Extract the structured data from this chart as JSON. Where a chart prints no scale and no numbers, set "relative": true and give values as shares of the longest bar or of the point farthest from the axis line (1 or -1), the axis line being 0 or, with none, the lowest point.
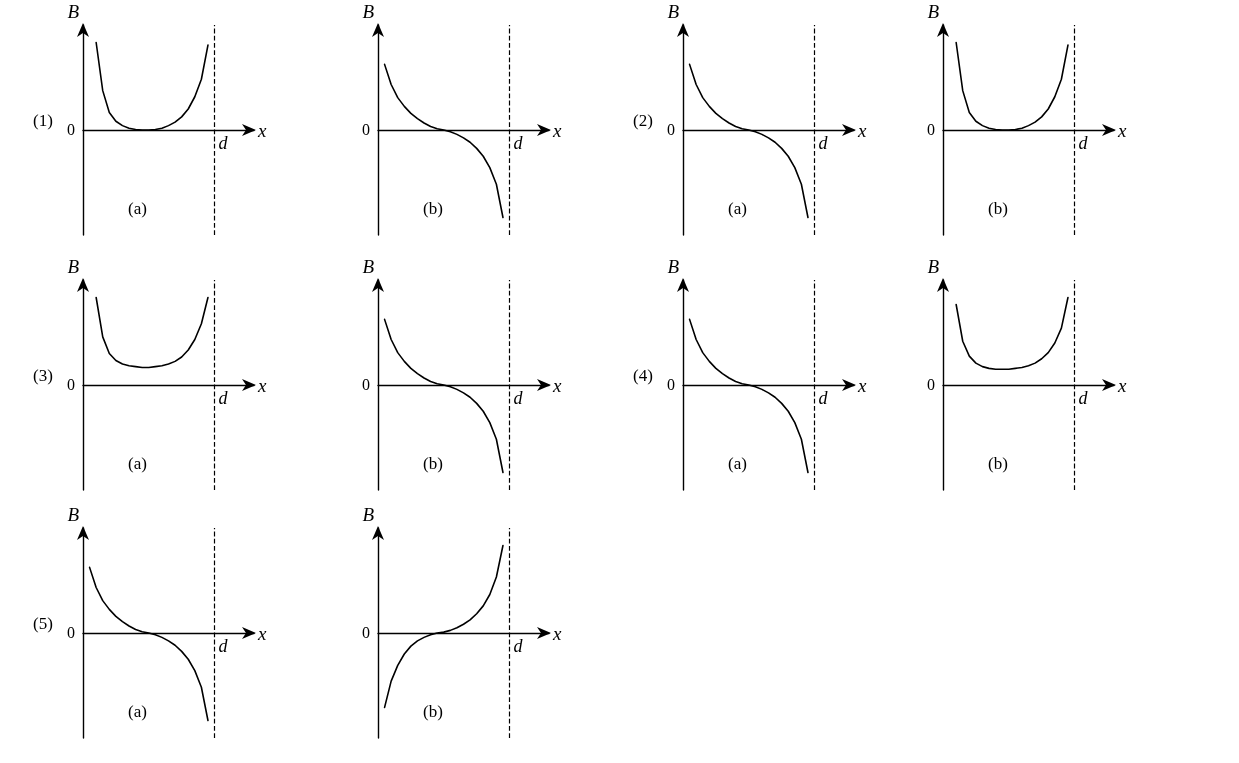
{
  "chart_data": [
    {
      "type": "line",
      "title": "(1)",
      "subtitle": "(a)",
      "xlabel": "x",
      "ylabel": "B",
      "annotations": [
        "0",
        "d"
      ],
      "relative": true,
      "color": "#000000",
      "categories": [
        null,
        null,
        null,
        null,
        null,
        null,
        null,
        null,
        null,
        null,
        null,
        null,
        null,
        null,
        null,
        null,
        null,
        null,
        null,
        null,
        null,
        null,
        null,
        null,
        null,
        null,
        null
      ],
      "values": [
        null,
        null,
        1,
        0.45,
        0.2,
        0.1,
        0.05,
        0.02,
        0.005,
        0,
        0,
        0.005,
        0.02,
        0.05,
        0.09,
        0.15,
        0.24,
        0.38,
        0.58,
        0.97,
        null,
        null,
        null,
        null,
        null,
        null,
        null
      ]
    },
    {
      "type": "line",
      "subtitle": "(b)",
      "xlabel": "x",
      "ylabel": "B",
      "annotations": [
        "0",
        "d"
      ],
      "relative": true,
      "color": "#000000",
      "categories": [
        null,
        null,
        null,
        null,
        null,
        null,
        null,
        null,
        null,
        null,
        null,
        null,
        null,
        null,
        null,
        null,
        null,
        null,
        null,
        null,
        null,
        null,
        null,
        null,
        null,
        null,
        null
      ],
      "values": [
        null,
        0.75,
        0.52,
        0.37,
        0.27,
        0.19,
        0.13,
        0.08,
        0.04,
        0.015,
        0,
        -0.02,
        -0.05,
        -0.09,
        -0.14,
        -0.21,
        -0.3,
        -0.43,
        -0.62,
        -1,
        null,
        null,
        null,
        null,
        null,
        null,
        null
      ]
    },
    {
      "type": "line",
      "title": "(2)",
      "subtitle": "(a)",
      "xlabel": "x",
      "ylabel": "B",
      "annotations": [
        "0",
        "d"
      ],
      "relative": true,
      "color": "#000000",
      "categories": [
        null,
        null,
        null,
        null,
        null,
        null,
        null,
        null,
        null,
        null,
        null,
        null,
        null,
        null,
        null,
        null,
        null,
        null,
        null,
        null,
        null,
        null,
        null,
        null,
        null,
        null,
        null
      ],
      "values": [
        null,
        0.75,
        0.52,
        0.37,
        0.27,
        0.19,
        0.13,
        0.08,
        0.04,
        0.015,
        0,
        -0.02,
        -0.05,
        -0.09,
        -0.14,
        -0.21,
        -0.3,
        -0.43,
        -0.62,
        -1,
        null,
        null,
        null,
        null,
        null,
        null,
        null
      ]
    },
    {
      "type": "line",
      "subtitle": "(b)",
      "xlabel": "x",
      "ylabel": "B",
      "annotations": [
        "0",
        "d"
      ],
      "relative": true,
      "color": "#000000",
      "categories": [
        null,
        null,
        null,
        null,
        null,
        null,
        null,
        null,
        null,
        null,
        null,
        null,
        null,
        null,
        null,
        null,
        null,
        null,
        null,
        null,
        null,
        null,
        null,
        null,
        null,
        null,
        null
      ],
      "values": [
        null,
        null,
        1,
        0.45,
        0.2,
        0.1,
        0.05,
        0.02,
        0.005,
        0,
        0,
        0.005,
        0.02,
        0.05,
        0.09,
        0.15,
        0.24,
        0.38,
        0.58,
        0.97,
        null,
        null,
        null,
        null,
        null,
        null,
        null
      ]
    },
    {
      "type": "line",
      "title": "(3)",
      "subtitle": "(a)",
      "xlabel": "x",
      "ylabel": "B",
      "annotations": [
        "0",
        "d"
      ],
      "relative": true,
      "color": "#000000",
      "categories": [
        null,
        null,
        null,
        null,
        null,
        null,
        null,
        null,
        null,
        null,
        null,
        null,
        null,
        null,
        null,
        null,
        null,
        null,
        null,
        null,
        null,
        null,
        null,
        null,
        null,
        null,
        null
      ],
      "values": [
        null,
        null,
        1,
        0.55,
        0.36,
        0.28,
        0.24,
        0.22,
        0.21,
        0.2,
        0.2,
        0.21,
        0.22,
        0.24,
        0.27,
        0.32,
        0.4,
        0.52,
        0.7,
        1,
        null,
        null,
        null,
        null,
        null,
        null,
        null
      ]
    },
    {
      "type": "line",
      "subtitle": "(b)",
      "xlabel": "x",
      "ylabel": "B",
      "annotations": [
        "0",
        "d"
      ],
      "relative": true,
      "color": "#000000",
      "categories": [
        null,
        null,
        null,
        null,
        null,
        null,
        null,
        null,
        null,
        null,
        null,
        null,
        null,
        null,
        null,
        null,
        null,
        null,
        null,
        null,
        null,
        null,
        null,
        null,
        null,
        null,
        null
      ],
      "values": [
        null,
        0.75,
        0.52,
        0.37,
        0.27,
        0.19,
        0.13,
        0.08,
        0.04,
        0.015,
        0,
        -0.02,
        -0.05,
        -0.09,
        -0.14,
        -0.21,
        -0.3,
        -0.43,
        -0.62,
        -1,
        null,
        null,
        null,
        null,
        null,
        null,
        null
      ]
    },
    {
      "type": "line",
      "title": "(4)",
      "subtitle": "(a)",
      "xlabel": "x",
      "ylabel": "B",
      "annotations": [
        "0",
        "d"
      ],
      "relative": true,
      "color": "#000000",
      "categories": [
        null,
        null,
        null,
        null,
        null,
        null,
        null,
        null,
        null,
        null,
        null,
        null,
        null,
        null,
        null,
        null,
        null,
        null,
        null,
        null,
        null,
        null,
        null,
        null,
        null,
        null,
        null
      ],
      "values": [
        null,
        0.75,
        0.52,
        0.37,
        0.27,
        0.19,
        0.13,
        0.08,
        0.04,
        0.015,
        0,
        -0.02,
        -0.05,
        -0.09,
        -0.14,
        -0.21,
        -0.3,
        -0.43,
        -0.62,
        -1,
        null,
        null,
        null,
        null,
        null,
        null,
        null
      ]
    },
    {
      "type": "line",
      "subtitle": "(b)",
      "xlabel": "x",
      "ylabel": "B",
      "annotations": [
        "0",
        "d"
      ],
      "relative": true,
      "color": "#000000",
      "categories": [
        null,
        null,
        null,
        null,
        null,
        null,
        null,
        null,
        null,
        null,
        null,
        null,
        null,
        null,
        null,
        null,
        null,
        null,
        null,
        null,
        null,
        null,
        null,
        null,
        null,
        null,
        null
      ],
      "values": [
        null,
        null,
        0.92,
        0.5,
        0.33,
        0.25,
        0.21,
        0.19,
        0.18,
        0.18,
        0.18,
        0.19,
        0.2,
        0.22,
        0.25,
        0.3,
        0.37,
        0.48,
        0.65,
        1,
        null,
        null,
        null,
        null,
        null,
        null,
        null
      ]
    },
    {
      "type": "line",
      "title": "(5)",
      "subtitle": "(a)",
      "xlabel": "x",
      "ylabel": "B",
      "annotations": [
        "0",
        "d"
      ],
      "relative": true,
      "color": "#000000",
      "categories": [
        null,
        null,
        null,
        null,
        null,
        null,
        null,
        null,
        null,
        null,
        null,
        null,
        null,
        null,
        null,
        null,
        null,
        null,
        null,
        null,
        null,
        null,
        null,
        null,
        null,
        null,
        null
      ],
      "values": [
        null,
        0.75,
        0.52,
        0.37,
        0.27,
        0.19,
        0.13,
        0.08,
        0.04,
        0.015,
        0,
        -0.02,
        -0.05,
        -0.09,
        -0.14,
        -0.21,
        -0.3,
        -0.43,
        -0.62,
        -1,
        null,
        null,
        null,
        null,
        null,
        null,
        null
      ]
    },
    {
      "type": "line",
      "subtitle": "(b)",
      "xlabel": "x",
      "ylabel": "B",
      "annotations": [
        "0",
        "d"
      ],
      "relative": true,
      "color": "#000000",
      "categories": [
        null,
        null,
        null,
        null,
        null,
        null,
        null,
        null,
        null,
        null,
        null,
        null,
        null,
        null,
        null,
        null,
        null,
        null,
        null,
        null,
        null,
        null,
        null,
        null,
        null,
        null,
        null
      ],
      "values": [
        null,
        -0.85,
        -0.55,
        -0.37,
        -0.24,
        -0.15,
        -0.09,
        -0.05,
        -0.02,
        0,
        0.01,
        0.03,
        0.06,
        0.1,
        0.15,
        0.22,
        0.31,
        0.44,
        0.64,
        1,
        null,
        null,
        null,
        null,
        null,
        null,
        null
      ]
    }
  ]
}
